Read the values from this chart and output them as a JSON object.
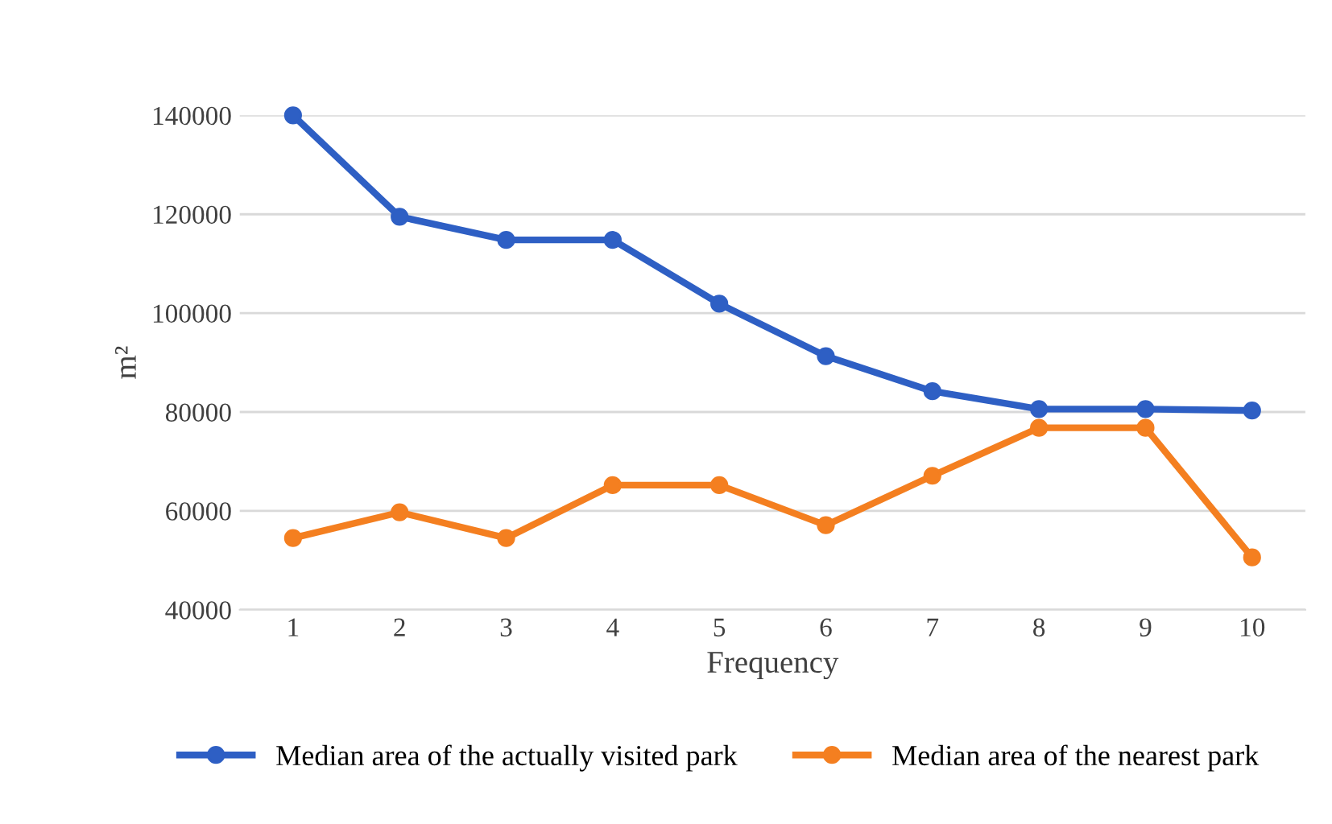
{
  "chart_data": {
    "type": "line",
    "xlabel": "Frequency",
    "ylabel": "m²",
    "categories": [
      "1",
      "2",
      "3",
      "4",
      "5",
      "6",
      "7",
      "8",
      "9",
      "10"
    ],
    "series": [
      {
        "name": "Median area of the actually visited park",
        "color": "#2e5fc4",
        "values": [
          140000,
          119500,
          114800,
          114800,
          101900,
          91300,
          84200,
          80600,
          80600,
          80300
        ]
      },
      {
        "name": "Median area of the nearest park",
        "color": "#f47f20",
        "values": [
          54500,
          59700,
          54500,
          65200,
          65200,
          57100,
          67100,
          76800,
          76800,
          50600
        ]
      }
    ],
    "ylim": [
      40000,
      140000
    ],
    "yticks": [
      40000,
      60000,
      80000,
      100000,
      120000,
      140000
    ],
    "grid": "y",
    "legend": "bottom",
    "marker": "circle",
    "line_style": "solid"
  }
}
